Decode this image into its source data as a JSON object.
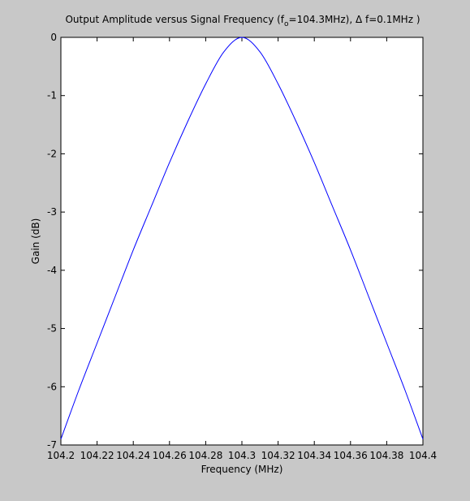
{
  "figure": {
    "background_color": "#c8c8c8",
    "axes_background_color": "#ffffff",
    "line_color": "#0000ff"
  },
  "chart_data": {
    "type": "line",
    "title_parts": {
      "prefix": "Output Amplitude versus Signal Frequency (f",
      "subscript": "o",
      "suffix": "=104.3MHz), Δ f=0.1MHz )"
    },
    "xlabel": "Frequency (MHz)",
    "ylabel": "Gain (dB)",
    "xlim": [
      104.2,
      104.4
    ],
    "ylim": [
      -7,
      0
    ],
    "xticks": [
      "104.2",
      "104.22",
      "104.24",
      "104.26",
      "104.28",
      "104.3",
      "104.32",
      "104.34",
      "104.36",
      "104.38",
      "104.4"
    ],
    "yticks": [
      "0",
      "-1",
      "-2",
      "-3",
      "-4",
      "-5",
      "-6",
      "-7"
    ],
    "grid": false,
    "series": [
      {
        "x": [
          104.2,
          104.21,
          104.22,
          104.23,
          104.24,
          104.25,
          104.26,
          104.27,
          104.28,
          104.29,
          104.3,
          104.31,
          104.32,
          104.33,
          104.34,
          104.35,
          104.36,
          104.37,
          104.38,
          104.39,
          104.4
        ],
        "y": [
          -6.9,
          -6.05,
          -5.25,
          -4.45,
          -3.65,
          -2.9,
          -2.15,
          -1.45,
          -0.8,
          -0.25,
          0,
          -0.25,
          -0.8,
          -1.45,
          -2.15,
          -2.9,
          -3.65,
          -4.45,
          -5.25,
          -6.05,
          -6.9
        ]
      }
    ]
  }
}
